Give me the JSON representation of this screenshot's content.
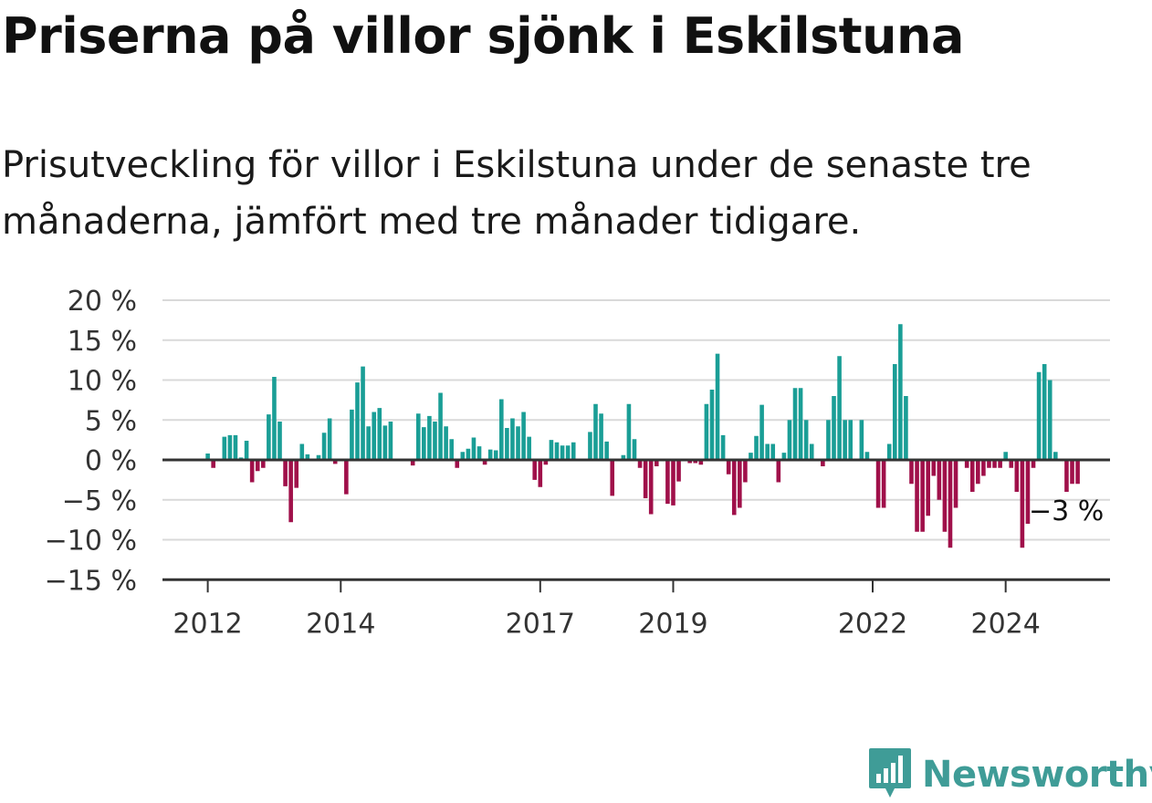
{
  "header": {
    "title": "Priserna på villor sjönk i Eskilstuna",
    "subtitle": "Prisutveckling för villor i Eskilstuna under de senaste tre månaderna, jämfört med tre månader tidigare."
  },
  "brand": {
    "name": "Newsworthy",
    "icon": "newsworthy-logo-icon",
    "color": "#3f9c97"
  },
  "colors": {
    "positive": "#1a9e96",
    "negative": "#a0104a",
    "grid": "#d9d9d9",
    "axis": "#333333"
  },
  "chart_data": {
    "type": "bar",
    "title": "Priserna på villor sjönk i Eskilstuna",
    "xlabel": "",
    "ylabel": "",
    "ylim": [
      -15,
      20
    ],
    "y_ticks": [
      20,
      15,
      10,
      5,
      0,
      -5,
      -10,
      -15
    ],
    "y_tick_labels": [
      "20 %",
      "15 %",
      "10 %",
      "5 %",
      "0 %",
      "−5 %",
      "−10 %",
      "−15 %"
    ],
    "x_tick_labels": [
      "2012",
      "2014",
      "2017",
      "2019",
      "2022",
      "2024"
    ],
    "x_tick_years": [
      2012,
      2014,
      2017,
      2019,
      2022,
      2024
    ],
    "first_month": "2012-01",
    "annotation": {
      "text": "−3 %",
      "value": -3
    },
    "grid": true,
    "legend": "none",
    "values": [
      0.8,
      -1.0,
      0,
      2.9,
      3.1,
      3.1,
      0.3,
      2.4,
      -2.8,
      -1.4,
      -1.0,
      5.7,
      10.4,
      4.8,
      -3.3,
      -7.8,
      -3.5,
      2.0,
      0.7,
      0,
      0.6,
      3.4,
      5.2,
      -0.5,
      0,
      -4.3,
      6.3,
      9.7,
      11.7,
      4.2,
      6.0,
      6.5,
      4.3,
      4.8,
      0,
      0,
      0,
      -0.7,
      5.8,
      4.1,
      5.5,
      4.8,
      8.4,
      4.2,
      2.6,
      -1.0,
      1.0,
      1.4,
      2.8,
      1.7,
      -0.6,
      1.3,
      1.2,
      7.6,
      4.0,
      5.2,
      4.2,
      6.0,
      2.9,
      -2.5,
      -3.4,
      -0.6,
      2.5,
      2.2,
      1.8,
      1.8,
      2.2,
      0,
      0,
      3.5,
      7.0,
      5.8,
      2.3,
      -4.5,
      0,
      0.6,
      7.0,
      2.6,
      -1.0,
      -4.8,
      -6.8,
      -0.8,
      0,
      -5.5,
      -5.7,
      -2.7,
      0,
      -0.4,
      -0.4,
      -0.6,
      7.0,
      8.8,
      13.3,
      3.1,
      -1.8,
      -6.9,
      -6.0,
      -2.8,
      0.9,
      3.0,
      6.9,
      2.0,
      2.0,
      -2.8,
      0.9,
      5.0,
      9.0,
      9.0,
      5.0,
      2.0,
      0,
      -0.8,
      5.0,
      8.0,
      13.0,
      5.0,
      5.0,
      0,
      5.0,
      1.0,
      0,
      -6.0,
      -6.0,
      2.0,
      12.0,
      17.0,
      8.0,
      -3.0,
      -9.0,
      -9.0,
      -7.0,
      -2.0,
      -5.0,
      -9.0,
      -11.0,
      -6.0,
      0,
      -1.0,
      -4.0,
      -3.0,
      -2.0,
      -1.0,
      -1.0,
      -1.0,
      1.0,
      -1.0,
      -4.0,
      -11.0,
      -8.0,
      -1.0,
      11.0,
      12.0,
      10.0,
      1.0,
      0,
      -4.0,
      -3.0,
      -3.0
    ]
  }
}
